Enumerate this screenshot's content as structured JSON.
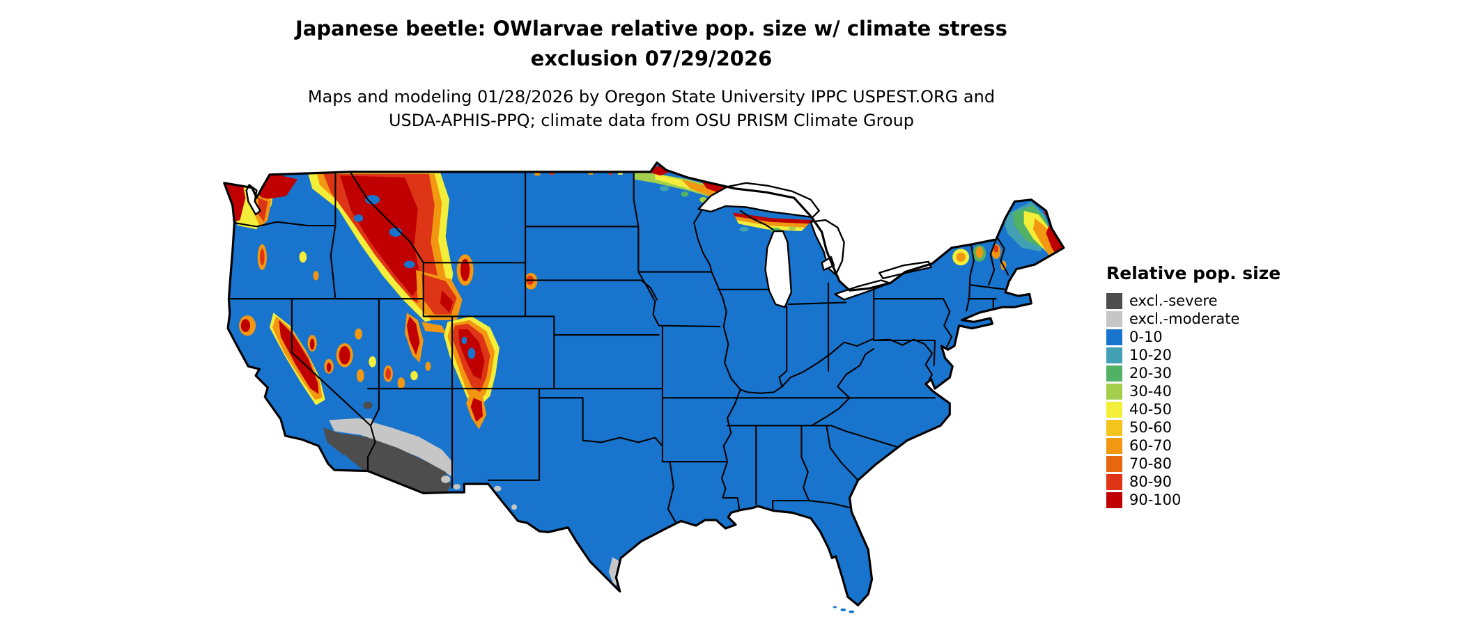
{
  "title": {
    "line1": "Japanese beetle: OWlarvae relative pop. size w/ climate stress",
    "line2": "exclusion 07/29/2026"
  },
  "subtitle": {
    "line1": "Maps and modeling 01/28/2026 by Oregon State University IPPC USPEST.ORG and",
    "line2": "USDA-APHIS-PPQ; climate data from OSU PRISM Climate Group"
  },
  "legend": {
    "title": "Relative pop. size",
    "entries": [
      {
        "label": "excl.-severe",
        "color": "#4d4d4d"
      },
      {
        "label": "excl.-moderate",
        "color": "#c6c6c6"
      },
      {
        "label": "0-10",
        "color": "#1874cd"
      },
      {
        "label": "10-20",
        "color": "#41a0b4"
      },
      {
        "label": "20-30",
        "color": "#51b164"
      },
      {
        "label": "30-40",
        "color": "#a3cf4c"
      },
      {
        "label": "40-50",
        "color": "#f2ee3a"
      },
      {
        "label": "50-60",
        "color": "#f4c31c"
      },
      {
        "label": "60-70",
        "color": "#f29711"
      },
      {
        "label": "70-80",
        "color": "#e8670e"
      },
      {
        "label": "80-90",
        "color": "#dd3516"
      },
      {
        "label": "90-100",
        "color": "#c00000"
      }
    ]
  }
}
